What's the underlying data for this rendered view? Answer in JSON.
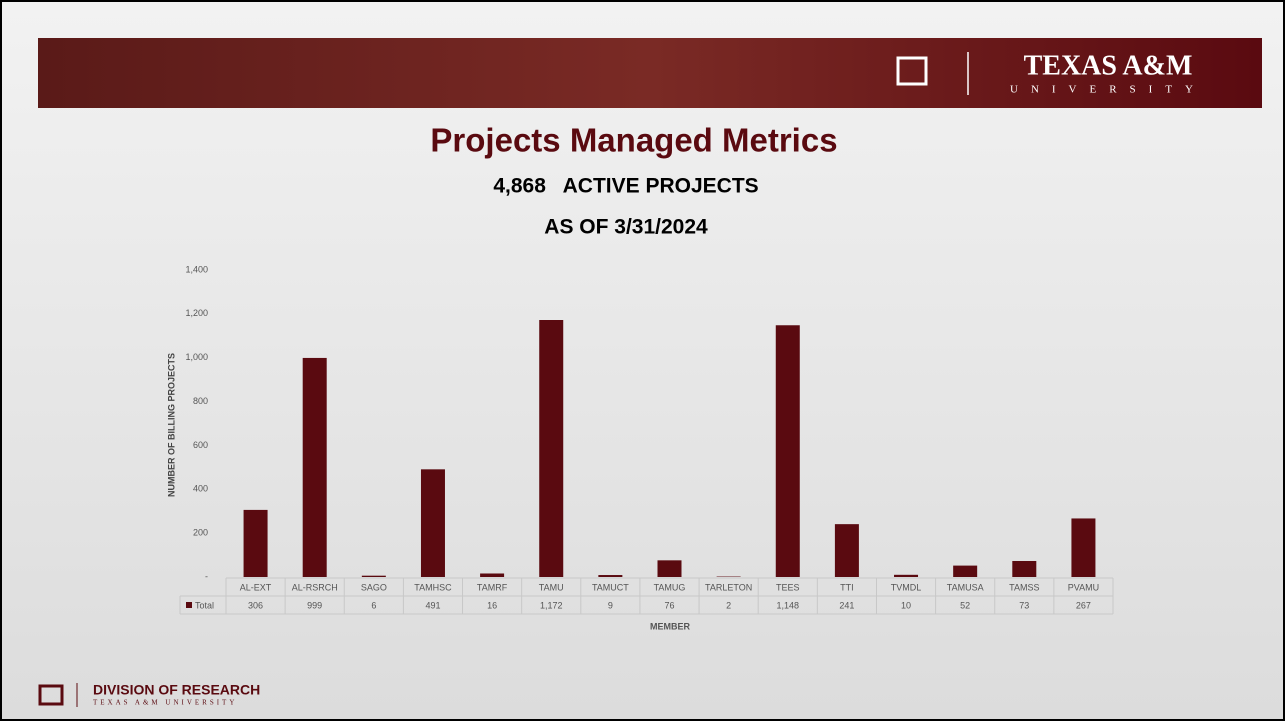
{
  "header": {
    "logo_text": "TEXAS A&M",
    "logo_sub": "UNIVERSITY"
  },
  "footer": {
    "title": "DIVISION OF RESEARCH",
    "subtitle": "TEXAS A&M UNIVERSITY"
  },
  "chart_data": {
    "type": "bar",
    "title": "Projects Managed Metrics",
    "subtitle": [
      "4,868   ACTIVE PROJECTS",
      "AS OF 3/31/2024"
    ],
    "y_label": "NUMBER OF BILLING PROJECTS",
    "x_label": "MEMBER",
    "categories": [
      "AL-EXT",
      "AL-RSRCH",
      "SAGO",
      "TAMHSC",
      "TAMRF",
      "TAMU",
      "TAMUCT",
      "TAMUG",
      "TARLETON",
      "TEES",
      "TTI",
      "TVMDL",
      "TAMUSA",
      "TAMSS",
      "PVAMU"
    ],
    "series": [
      {
        "name": "Total",
        "color": "#5a0a10",
        "values": [
          306,
          999,
          6,
          491,
          16,
          1172,
          9,
          76,
          2,
          1148,
          241,
          10,
          52,
          73,
          267
        ],
        "value_labels": [
          "306",
          "999",
          "6",
          "491",
          "16",
          "1,172",
          "9",
          "76",
          "2",
          "1,148",
          "241",
          "10",
          "52",
          "73",
          "267"
        ]
      }
    ],
    "ylim": [
      0,
      1400
    ],
    "yticks": [
      {
        "value": 0,
        "label": "-"
      },
      200,
      400,
      600,
      800,
      {
        "value": 1000,
        "label": "1,000"
      },
      {
        "value": 1200,
        "label": "1,200"
      },
      {
        "value": 1400,
        "label": "1,400"
      }
    ],
    "grid": false
  }
}
